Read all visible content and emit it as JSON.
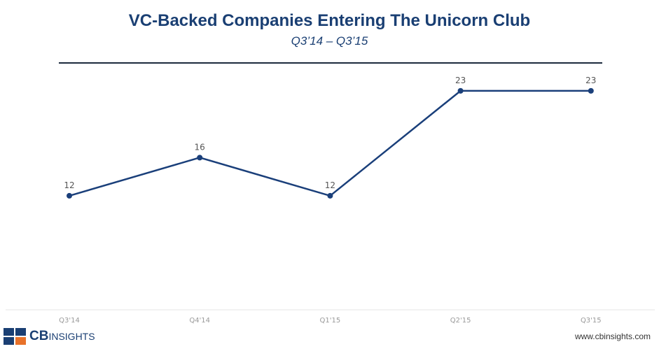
{
  "chart_data": {
    "type": "line",
    "title": "VC-Backed Companies Entering The Unicorn Club",
    "subtitle": "Q3’14 – Q3’15",
    "categories": [
      "Q3'14",
      "Q4'14",
      "Q1'15",
      "Q2'15",
      "Q3'15"
    ],
    "values": [
      12,
      16,
      12,
      23,
      23
    ],
    "ylim": [
      0,
      25
    ],
    "grid": false,
    "color": "#1a3f7a"
  },
  "footer": {
    "logo": "CB INSIGHTS",
    "logo_bold": "CB",
    "logo_rest": "INSIGHTS",
    "url": "www.cbinsights.com"
  }
}
